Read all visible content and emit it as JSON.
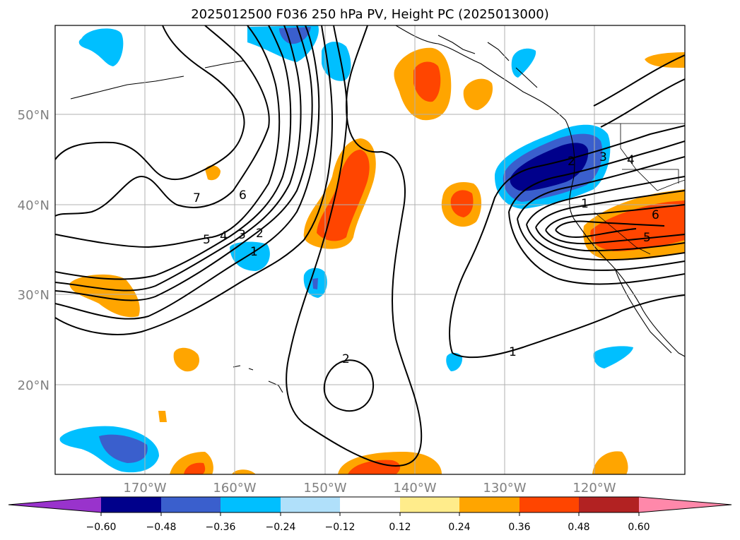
{
  "title": "2025012500 F036 250 hPa PV, Height PC (2025013000)",
  "lat_labels": [
    "50°N",
    "40°N",
    "30°N",
    "20°N"
  ],
  "lon_labels": [
    "170°W",
    "160°W",
    "150°W",
    "140°W",
    "130°W",
    "120°W"
  ],
  "contour_labels": [
    "7",
    "6",
    "5",
    "4",
    "3",
    "2",
    "1",
    "2",
    "1",
    "1",
    "2",
    "3",
    "4",
    "6",
    "5"
  ],
  "colorbar": {
    "ticks": [
      "−0.60",
      "−0.48",
      "−0.36",
      "−0.24",
      "−0.12",
      "0.12",
      "0.24",
      "0.36",
      "0.48",
      "0.60"
    ],
    "colors": {
      "under": "#9933cc",
      "n060": "#00008b",
      "n048": "#3a5fcd",
      "n036": "#00bfff",
      "n024": "#b0e0fa",
      "zero": "#ffffff",
      "p012": "#ffec8b",
      "p024": "#ffa500",
      "p036": "#ff4500",
      "p048": "#b22222",
      "over": "#ff88aa"
    }
  }
}
